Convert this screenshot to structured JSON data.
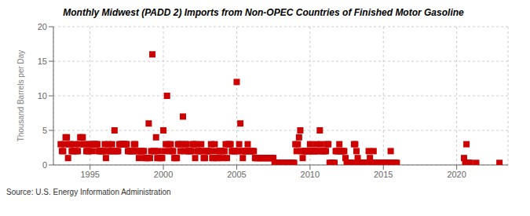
{
  "chart_data": {
    "type": "scatter",
    "title": "Monthly Midwest (PADD 2) Imports from Non-OPEC Countries of Finished Motor Gasoline",
    "y_label": "Thousand Barrels per Day",
    "annotations": [
      "Source: U.S. Energy Information Administration"
    ],
    "color": "#cc0000",
    "marker": "square",
    "grid": true,
    "xlim": [
      1992.5,
      2023.5
    ],
    "xticks": [
      1995,
      2000,
      2005,
      2010,
      2015,
      2020
    ],
    "ylim": [
      0,
      20
    ],
    "yticks": [
      0,
      5,
      10,
      15,
      20
    ],
    "x": [
      1993.0,
      1993.083,
      1993.167,
      1993.25,
      1993.333,
      1993.417,
      1993.5,
      1993.583,
      1993.667,
      1993.75,
      1993.833,
      1993.917,
      1994.0,
      1994.083,
      1994.167,
      1994.25,
      1994.333,
      1994.417,
      1994.5,
      1994.583,
      1994.667,
      1994.75,
      1994.833,
      1994.917,
      1995.0,
      1995.083,
      1995.167,
      1995.25,
      1995.333,
      1995.417,
      1995.5,
      1995.583,
      1995.667,
      1995.75,
      1995.833,
      1995.917,
      1996.0,
      1996.083,
      1996.167,
      1996.25,
      1996.333,
      1996.417,
      1996.5,
      1996.583,
      1996.667,
      1996.75,
      1996.833,
      1996.917,
      1997.0,
      1997.083,
      1997.167,
      1997.25,
      1997.333,
      1997.417,
      1997.5,
      1997.583,
      1997.667,
      1997.75,
      1997.833,
      1997.917,
      1998.0,
      1998.083,
      1998.167,
      1998.25,
      1998.333,
      1998.417,
      1998.5,
      1998.583,
      1998.667,
      1998.75,
      1998.833,
      1998.917,
      1999.0,
      1999.083,
      1999.167,
      1999.25,
      1999.333,
      1999.417,
      1999.5,
      1999.583,
      1999.667,
      1999.75,
      1999.833,
      1999.917,
      2000.0,
      2000.083,
      2000.167,
      2000.25,
      2000.333,
      2000.417,
      2000.5,
      2000.583,
      2000.667,
      2000.75,
      2000.833,
      2000.917,
      2001.0,
      2001.083,
      2001.167,
      2001.25,
      2001.333,
      2001.417,
      2001.5,
      2001.583,
      2001.667,
      2001.75,
      2001.833,
      2001.917,
      2002.0,
      2002.083,
      2002.167,
      2002.25,
      2002.333,
      2002.417,
      2002.5,
      2002.583,
      2002.667,
      2002.75,
      2002.833,
      2002.917,
      2003.0,
      2003.083,
      2003.167,
      2003.25,
      2003.333,
      2003.417,
      2003.5,
      2003.583,
      2003.667,
      2003.75,
      2003.833,
      2003.917,
      2004.0,
      2004.083,
      2004.167,
      2004.25,
      2004.333,
      2004.417,
      2004.5,
      2004.583,
      2004.667,
      2004.75,
      2004.833,
      2004.917,
      2005.0,
      2005.083,
      2005.167,
      2005.25,
      2005.333,
      2005.417,
      2005.5,
      2005.583,
      2005.667,
      2005.75,
      2005.833,
      2005.917,
      2006.0,
      2006.083,
      2006.167,
      2006.25,
      2006.333,
      2006.417,
      2006.5,
      2006.583,
      2006.667,
      2006.75,
      2006.833,
      2006.917,
      2007.0,
      2007.083,
      2007.167,
      2007.25,
      2007.333,
      2007.417,
      2007.5,
      2007.583,
      2007.667,
      2007.75,
      2007.833,
      2007.917,
      2008.0,
      2008.083,
      2008.167,
      2008.25,
      2008.333,
      2008.417,
      2008.5,
      2008.583,
      2008.667,
      2008.75,
      2008.833,
      2008.917,
      2009.0,
      2009.083,
      2009.167,
      2009.25,
      2009.333,
      2009.417,
      2009.5,
      2009.583,
      2009.667,
      2009.75,
      2009.833,
      2009.917,
      2010.0,
      2010.083,
      2010.167,
      2010.25,
      2010.333,
      2010.417,
      2010.5,
      2010.583,
      2010.667,
      2010.75,
      2010.833,
      2010.917,
      2011.0,
      2011.083,
      2011.167,
      2011.25,
      2011.333,
      2011.417,
      2011.5,
      2011.583,
      2011.667,
      2011.75,
      2011.833,
      2011.917,
      2012.0,
      2012.083,
      2012.167,
      2012.25,
      2012.333,
      2012.417,
      2012.5,
      2012.583,
      2012.667,
      2012.75,
      2012.833,
      2012.917,
      2013.0,
      2013.083,
      2013.167,
      2013.25,
      2013.333,
      2013.417,
      2013.5,
      2013.583,
      2013.667,
      2013.75,
      2013.833,
      2013.917,
      2014.0,
      2014.083,
      2014.167,
      2014.25,
      2014.333,
      2014.417,
      2014.5,
      2014.583,
      2014.667,
      2014.75,
      2014.833,
      2014.917,
      2015.0,
      2015.083,
      2015.167,
      2015.25,
      2015.333,
      2015.417,
      2015.5,
      2015.583,
      2015.667,
      2015.75,
      2015.833,
      2015.917,
      2020.5,
      2020.583,
      2020.667,
      2020.75,
      2020.833,
      2020.917,
      2021.333,
      2022.917
    ],
    "values": [
      3.0,
      2.0,
      2.0,
      3.0,
      4.0,
      4.0,
      1.0,
      3.0,
      3.0,
      2.0,
      2.0,
      2.0,
      3.0,
      2.0,
      2.0,
      3.0,
      4.0,
      4.0,
      4.0,
      3.0,
      3.0,
      2.0,
      2.0,
      2.0,
      3.0,
      3.0,
      2.0,
      3.0,
      3.0,
      3.0,
      3.0,
      2.0,
      2.0,
      2.0,
      2.0,
      2.0,
      3.0,
      1.0,
      2.0,
      3.0,
      2.0,
      2.0,
      3.0,
      2.0,
      5.0,
      2.0,
      2.0,
      2.0,
      3.0,
      3.0,
      3.0,
      3.0,
      3.0,
      3.0,
      3.0,
      2.0,
      2.0,
      2.0,
      2.0,
      2.0,
      3.0,
      3.0,
      2.0,
      2.0,
      1.0,
      2.0,
      2.0,
      2.0,
      2.0,
      1.0,
      1.0,
      1.0,
      6.0,
      1.0,
      2.0,
      16.0,
      2.0,
      2.0,
      4.0,
      1.0,
      2.0,
      1.0,
      1.0,
      1.0,
      5.0,
      2.0,
      3.0,
      10.0,
      3.0,
      2.0,
      3.0,
      2.0,
      2.0,
      1.0,
      1.0,
      1.0,
      3.0,
      3.0,
      2.0,
      3.0,
      7.0,
      2.0,
      3.0,
      3.0,
      2.0,
      2.0,
      2.0,
      2.0,
      3.0,
      3.0,
      1.0,
      3.0,
      2.0,
      2.0,
      2.0,
      3.0,
      2.0,
      1.0,
      1.0,
      2.0,
      2.0,
      2.0,
      2.0,
      3.0,
      1.0,
      1.0,
      3.0,
      2.0,
      1.0,
      1.0,
      2.0,
      2.0,
      2.0,
      1.0,
      2.0,
      3.0,
      1.0,
      3.0,
      3.0,
      3.0,
      2.0,
      2.0,
      2.0,
      2.0,
      12.0,
      2.0,
      3.0,
      6.0,
      2.0,
      1.0,
      2.0,
      2.0,
      2.0,
      3.0,
      2.0,
      2.0,
      2.0,
      2.0,
      2.0,
      1.0,
      1.0,
      1.0,
      1.0,
      1.0,
      1.0,
      1.0,
      1.0,
      1.0,
      1.0,
      1.0,
      1.0,
      1.0,
      1.0,
      1.0,
      1.0,
      0.3,
      0.3,
      0.3,
      0.3,
      0.3,
      0.3,
      0.3,
      0.3,
      0.3,
      0.3,
      0.3,
      0.3,
      0.3,
      0.3,
      0.3,
      0.3,
      0.3,
      3.0,
      2.0,
      3.0,
      4.0,
      5.0,
      2.0,
      1.0,
      2.0,
      2.0,
      2.0,
      2.0,
      2.0,
      3.0,
      2.0,
      2.0,
      2.0,
      2.0,
      3.0,
      2.0,
      2.0,
      5.0,
      3.0,
      2.0,
      2.0,
      2.0,
      2.0,
      3.0,
      3.0,
      0.3,
      0.3,
      0.3,
      0.3,
      0.3,
      2.0,
      2.0,
      2.0,
      3.0,
      2.0,
      2.0,
      2.0,
      2.0,
      1.0,
      0.3,
      0.3,
      0.3,
      0.3,
      0.3,
      0.3,
      3.0,
      3.0,
      2.0,
      1.0,
      0.3,
      0.3,
      0.3,
      0.3,
      0.3,
      0.3,
      0.3,
      0.3,
      2.0,
      1.0,
      0.3,
      0.3,
      2.0,
      0.3,
      0.3,
      0.3,
      0.3,
      0.3,
      0.3,
      0.3,
      0.3,
      0.3,
      0.3,
      0.3,
      0.3,
      0.3,
      2.0,
      0.3,
      0.3,
      0.3,
      0.3,
      0.3,
      1.0,
      0.3,
      3.0,
      0.3,
      0.3,
      0.3,
      0.3,
      0.3
    ]
  }
}
